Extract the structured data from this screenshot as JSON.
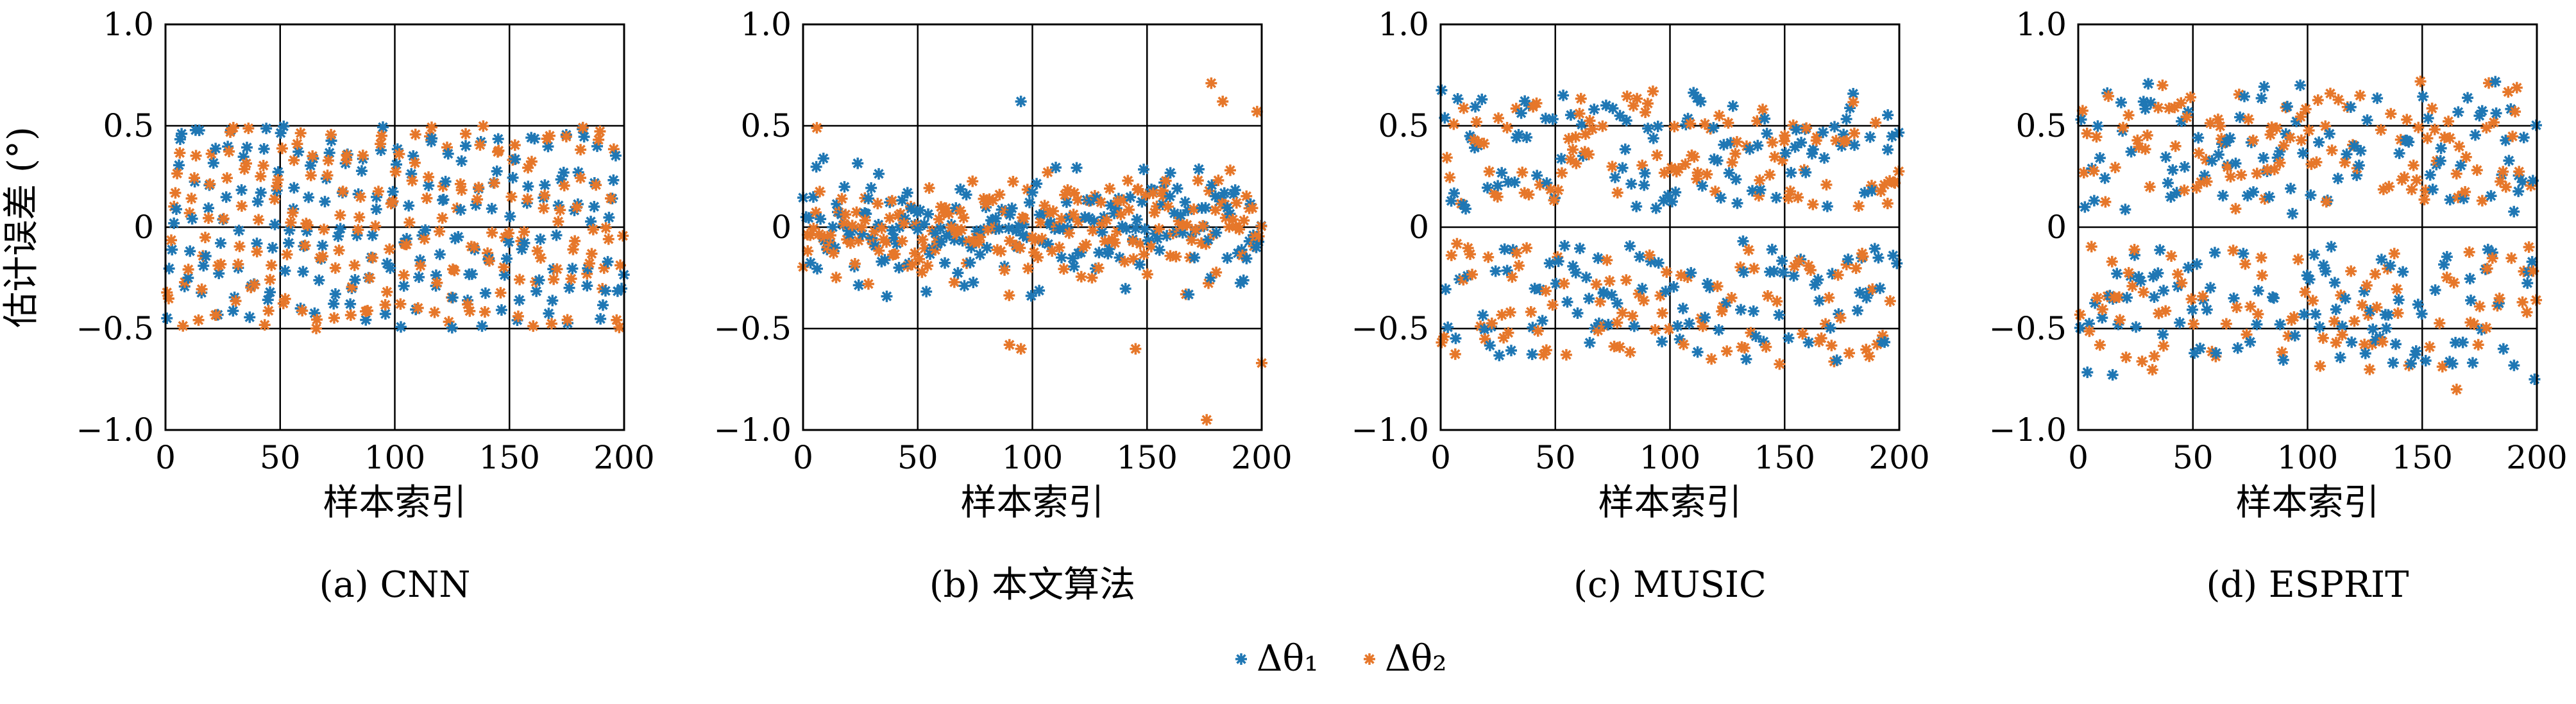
{
  "figure": {
    "legend": [
      {
        "label": "Δθ₁",
        "color": "#1f77b4"
      },
      {
        "label": "Δθ₂",
        "color": "#e6772a"
      }
    ]
  },
  "chart_data": [
    {
      "type": "scatter",
      "caption": "(a) CNN",
      "ylabel": "估计误差 (°)",
      "xlabel": "样本索引",
      "xlim": [
        0,
        200
      ],
      "ylim": [
        -1.0,
        1.0
      ],
      "xticks": [
        "0",
        "50",
        "100",
        "150",
        "200"
      ],
      "yticks": [
        "1.0",
        "0.5",
        "0",
        "−0.5",
        "−1.0"
      ],
      "grid": true,
      "pattern": "uniform",
      "amplitude": 0.5,
      "series": [
        {
          "name": "Δθ₁",
          "color": "#1f77b4",
          "n": 200
        },
        {
          "name": "Δθ₂",
          "color": "#e6772a",
          "n": 200
        }
      ]
    },
    {
      "type": "scatter",
      "caption": "(b) 本文算法",
      "ylabel": "",
      "xlabel": "样本索引",
      "xlim": [
        0,
        200
      ],
      "ylim": [
        -1.0,
        1.0
      ],
      "xticks": [
        "0",
        "50",
        "100",
        "150",
        "200"
      ],
      "yticks": [
        "1.0",
        "0.5",
        "0",
        "−0.5",
        "−1.0"
      ],
      "grid": true,
      "pattern": "concentrated",
      "amplitude": 0.3,
      "series": [
        {
          "name": "Δθ₁",
          "color": "#1f77b4",
          "n": 200
        },
        {
          "name": "Δθ₂",
          "color": "#e6772a",
          "n": 200
        }
      ],
      "outliers": [
        {
          "series": "Δθ₂",
          "x": 176,
          "y": -0.95
        },
        {
          "series": "Δθ₂",
          "x": 178,
          "y": 0.71
        },
        {
          "series": "Δθ₂",
          "x": 183,
          "y": 0.62
        },
        {
          "series": "Δθ₁",
          "x": 95,
          "y": 0.62
        },
        {
          "series": "Δθ₂",
          "x": 200,
          "y": -0.67
        },
        {
          "series": "Δθ₂",
          "x": 198,
          "y": 0.57
        },
        {
          "series": "Δθ₂",
          "x": 95,
          "y": -0.6
        },
        {
          "series": "Δθ₂",
          "x": 90,
          "y": -0.58
        },
        {
          "series": "Δθ₂",
          "x": 145,
          "y": -0.6
        },
        {
          "series": "Δθ₂",
          "x": 6,
          "y": 0.49
        }
      ]
    },
    {
      "type": "scatter",
      "caption": "(c) MUSIC",
      "ylabel": "",
      "xlabel": "样本索引",
      "xlim": [
        0,
        200
      ],
      "ylim": [
        -1.0,
        1.0
      ],
      "xticks": [
        "0",
        "50",
        "100",
        "150",
        "200"
      ],
      "yticks": [
        "1.0",
        "0.5",
        "0",
        "−0.5",
        "−1.0"
      ],
      "grid": true,
      "pattern": "spread",
      "amplitude": 0.65,
      "series": [
        {
          "name": "Δθ₁",
          "color": "#1f77b4",
          "n": 200
        },
        {
          "name": "Δθ₂",
          "color": "#e6772a",
          "n": 200
        }
      ]
    },
    {
      "type": "scatter",
      "caption": "(d) ESPRIT",
      "ylabel": "",
      "xlabel": "样本索引",
      "xlim": [
        0,
        200
      ],
      "ylim": [
        -1.0,
        1.0
      ],
      "xticks": [
        "0",
        "50",
        "100",
        "150",
        "200"
      ],
      "yticks": [
        "1.0",
        "0.5",
        "0",
        "−0.5",
        "−1.0"
      ],
      "grid": true,
      "pattern": "spread",
      "amplitude": 0.7,
      "series": [
        {
          "name": "Δθ₁",
          "color": "#1f77b4",
          "n": 200
        },
        {
          "name": "Δθ₂",
          "color": "#e6772a",
          "n": 200
        }
      ],
      "outliers": [
        {
          "series": "Δθ₂",
          "x": 178,
          "y": 0.49
        },
        {
          "series": "Δθ₂",
          "x": 165,
          "y": -0.8
        },
        {
          "series": "Δθ₁",
          "x": 199,
          "y": -0.75
        }
      ]
    }
  ]
}
